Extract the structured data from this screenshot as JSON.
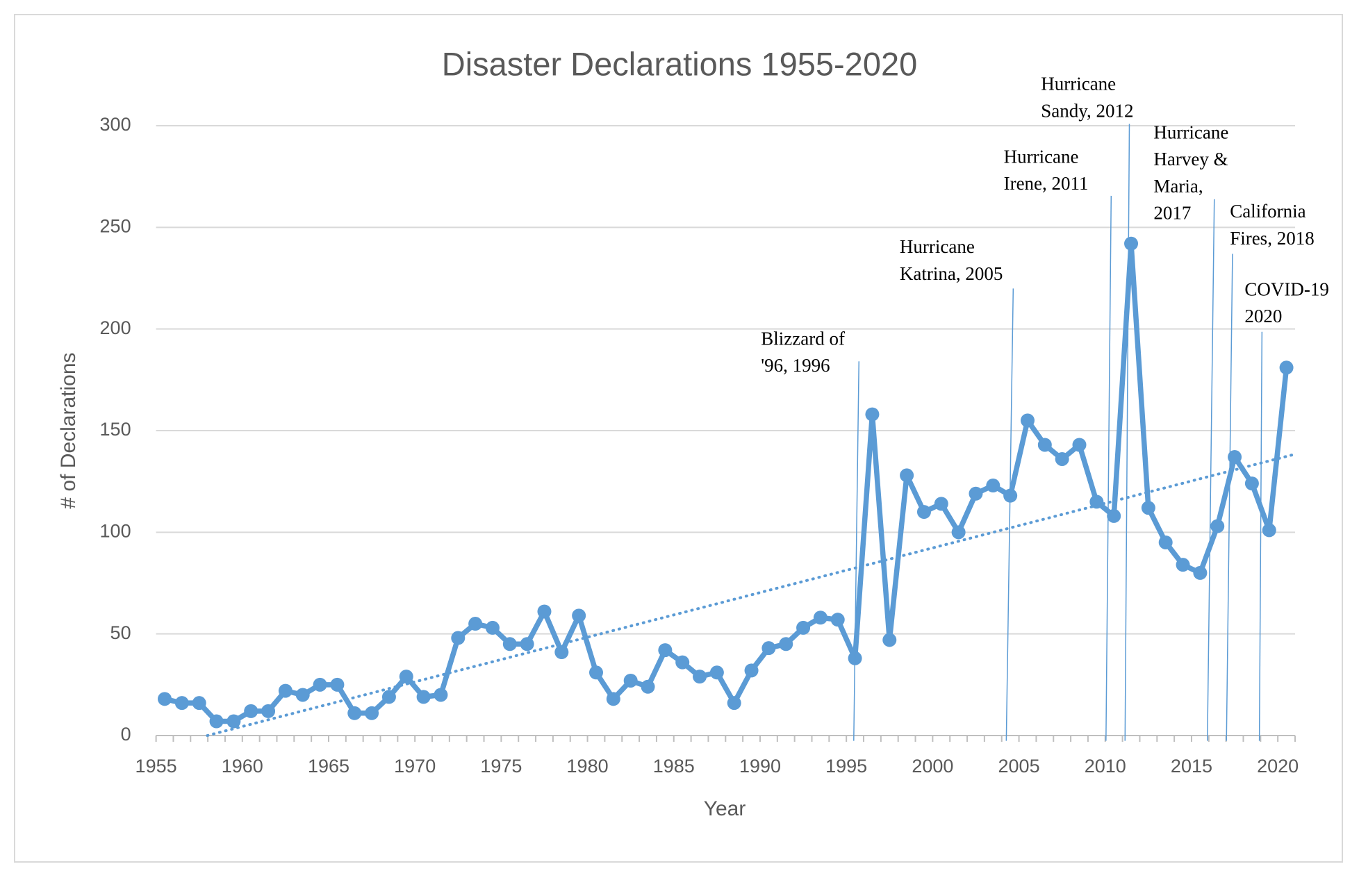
{
  "chart_data": {
    "type": "line",
    "title": "Disaster Declarations 1955-2020",
    "x_label": "Year",
    "y_label": "# of Declarations",
    "categories": [
      "1955",
      null,
      null,
      null,
      null,
      "1960",
      null,
      null,
      null,
      null,
      "1965",
      null,
      null,
      null,
      null,
      "1970",
      null,
      null,
      null,
      null,
      "1975",
      null,
      null,
      null,
      null,
      "1980",
      null,
      null,
      null,
      null,
      "1985",
      null,
      null,
      null,
      null,
      "1990",
      null,
      null,
      null,
      null,
      "1995",
      null,
      null,
      null,
      null,
      "2000",
      null,
      null,
      null,
      null,
      "2005",
      null,
      null,
      null,
      null,
      "2010",
      null,
      null,
      null,
      null,
      "2015",
      null,
      null,
      null,
      null,
      "2020"
    ],
    "values": [
      18,
      16,
      16,
      7,
      7,
      12,
      12,
      22,
      20,
      25,
      25,
      11,
      11,
      19,
      29,
      19,
      20,
      48,
      55,
      53,
      45,
      45,
      61,
      41,
      59,
      31,
      18,
      27,
      24,
      42,
      36,
      29,
      31,
      16,
      32,
      43,
      45,
      53,
      58,
      57,
      38,
      158,
      47,
      128,
      110,
      114,
      100,
      119,
      123,
      118,
      155,
      143,
      136,
      143,
      115,
      108,
      242,
      112,
      95,
      84,
      80,
      103,
      137,
      124,
      101,
      181
    ],
    "color": "#5b9bd5",
    "markers": true,
    "trendline": "linear",
    "ylim": [
      0,
      300
    ],
    "yticks": [
      0,
      50,
      100,
      150,
      200,
      250,
      300
    ],
    "grid": true,
    "annotations": [
      {
        "lines": [
          "Blizzard of",
          "'96, 1996"
        ]
      },
      {
        "lines": [
          "Hurricane",
          "Katrina, 2005"
        ]
      },
      {
        "lines": [
          "Hurricane",
          "Irene, 2011"
        ]
      },
      {
        "lines": [
          "Hurricane",
          "Sandy, 2012"
        ]
      },
      {
        "lines": [
          "Hurricane",
          "Harvey &",
          "Maria,",
          "2017"
        ]
      },
      {
        "lines": [
          "California",
          "Fires, 2018"
        ]
      },
      {
        "lines": [
          "COVID-19",
          "2020"
        ]
      }
    ]
  }
}
